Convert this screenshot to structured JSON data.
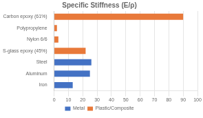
{
  "chart_data": {
    "type": "bar",
    "orientation": "horizontal",
    "title": "Specific Stiffness (E/ρ)",
    "categories": [
      "Carbon epoxy (61%)",
      "Polypropylene",
      "Nylon 6/6",
      "S-glass epoxy (45%)",
      "Steel",
      "Aluminum",
      "Iron"
    ],
    "series": [
      {
        "name": "Metal",
        "color": "#4472C4",
        "values": [
          null,
          null,
          null,
          null,
          26,
          25,
          13
        ]
      },
      {
        "name": "Plastic/Composite",
        "color": "#E8793A",
        "values": [
          90,
          2,
          3,
          22,
          null,
          null,
          null
        ]
      }
    ],
    "xlim": [
      0,
      100
    ],
    "xticks": [
      0,
      10,
      20,
      30,
      40,
      50,
      60,
      70,
      80,
      90,
      100
    ],
    "grid": "x",
    "legend": "bottom"
  }
}
